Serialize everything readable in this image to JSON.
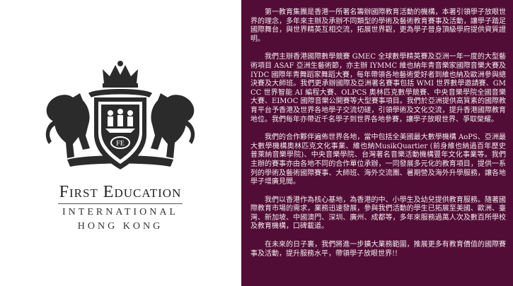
{
  "logo": {
    "crest_initials": "FE",
    "name": "First Education",
    "subtitle_line1": "INTERNATIONAL",
    "subtitle_line2": "HONG KONG"
  },
  "paragraphs": [
    "第一教育集團是香港一所著名籌辦國際教育活動的機構，本著引領學子放眼世界的理念，多年來主辦及承辦不同類型的學術及藝術教育賽事及活動，讓學子踏足國際舞台，與世界精英互相交流，拓展世界觀，更為學子晉身頂級學府提供資質證明。",
    "我們主辦香港國際數學競賽 GMEC 全球數學精英賽及亞洲一年一度的大型藝術項目 ASAF 亞洲生藝術節，亦主辦 IYMMC 維也納年青音樂家國際音樂大賽及 IYDC 國際年青舞蹈家舞蹈大賽，每年帶領各地藝術愛好者到維也納及歐洲參與總決賽及大師班。我們更承辦國際及亞洲著名賽事包括 WMI 世界數學邀請賽、GMCC 世界智能 AI 編程大賽、OLPCS 奧林匹克數學競賽、中央音樂學院全國音樂大賽、EIMOC 國際音樂公開賽等大型賽事項目。我們於亞洲提供高質素的國際教育平台予香港及世界各地學子交流切磋，引領學術及文化交流，提升香港國際教育地位。我們每年亦帶近千名學子到世界各地參賽，讓學子放眼世界、爭取榮耀。",
    "我們的合作夥伴遍佈世界各地，當中包括全美國最大數學機構 AoPS、亞洲最大數學機構奧林匹克文化事業、維也納MusikQuartier (前身維也納過百年歷史普萊納音樂學院)、中央音樂學院、台灣著名音樂活動機構豐年文化事業等。我們主辦的賽事亦由各地不同的合作單位承辦，一同發展多元化的教育項目，提供一系列的學術及藝術國際賽事、大師班、海外交流團、暑期營及海外升學服務，讓各地學子增廣見聞。",
    "我們以香港作為核心基地，為香港的中、小學生及幼兒提供教育服務。隨著國際教育市場的需求，業務迅速發展，參與我們活動的學生已拓展至美國、歐洲、臺灣、新加坡、中國澳門、深圳、廣州、成都等，多年來服務過萬人次及數百所學校及教育機構，口碑載道。",
    "在未來的日子裏，我們將進一步擴大業務範圍，推展更多有教育價值的國際賽事及活動，提升服務水平，帶領學子放眼世界!!"
  ]
}
